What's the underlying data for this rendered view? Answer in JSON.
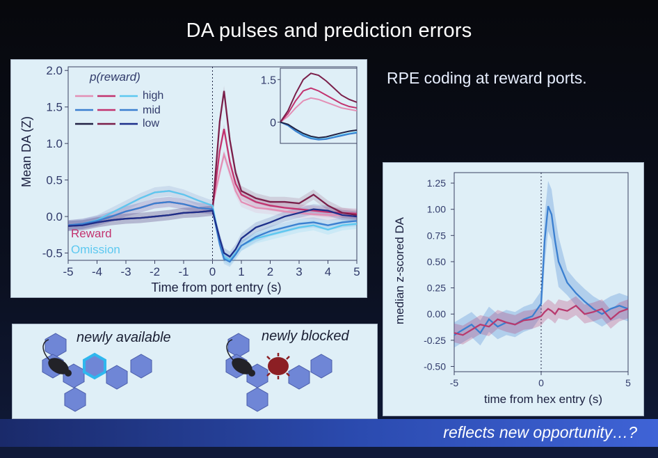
{
  "title": "DA pulses and prediction errors",
  "subtitle": "RPE coding at reward ports.",
  "bottom_text": "reflects new opportunity…?",
  "panel_scenes": {
    "label_left": "newly available",
    "label_right": "newly blocked"
  },
  "colors": {
    "reward_high": "#e38fb5",
    "reward_mid": "#c2336f",
    "reward_low": "#7a1f4a",
    "omission_high": "#5cc8f0",
    "omission_mid": "#3a7fd0",
    "omission_low": "#1d2f8a",
    "low_black": "#222244",
    "hex": "#6f86d6",
    "hex_highlight": "#2fb7ee",
    "blocked": "#8c1f24"
  },
  "chart_data": [
    {
      "type": "line",
      "xlabel": "Time from port entry (s)",
      "ylabel": "Mean DA (Z)",
      "xlim": [
        -5,
        5
      ],
      "ylim": [
        -0.6,
        2.05
      ],
      "xticks": [
        "-5",
        "-4",
        "-3",
        "-2",
        "-1",
        "0",
        "1",
        "2",
        "3",
        "4",
        "5"
      ],
      "yticks": [
        "2.0",
        "1.5",
        "1.0",
        "0.5",
        "0.0",
        "-0.5"
      ],
      "legend_title": "p(reward)",
      "legend_labels": [
        "high",
        "mid",
        "low"
      ],
      "reward_label": "Reward",
      "omission_label": "Omission",
      "x": [
        -5,
        -4.5,
        -4,
        -3.5,
        -3,
        -2.5,
        -2,
        -1.5,
        -1,
        -0.5,
        0,
        0.25,
        0.4,
        0.6,
        0.8,
        1,
        1.5,
        2,
        2.5,
        3,
        3.5,
        4,
        4.5,
        5
      ],
      "series": [
        {
          "name": "reward-high",
          "group": "reward",
          "level": "high",
          "values": [
            -0.12,
            -0.1,
            -0.05,
            0.05,
            0.15,
            0.25,
            0.33,
            0.35,
            0.3,
            0.22,
            0.15,
            0.6,
            0.85,
            0.6,
            0.35,
            0.2,
            0.12,
            0.1,
            0.07,
            0.05,
            0.03,
            0.02,
            0.02,
            0.01
          ]
        },
        {
          "name": "reward-mid",
          "group": "reward",
          "level": "mid",
          "values": [
            -0.12,
            -0.1,
            -0.06,
            0.0,
            0.07,
            0.12,
            0.18,
            0.2,
            0.17,
            0.12,
            0.1,
            0.9,
            1.2,
            0.75,
            0.45,
            0.3,
            0.2,
            0.15,
            0.12,
            0.1,
            0.08,
            0.06,
            0.05,
            0.04
          ]
        },
        {
          "name": "reward-low",
          "group": "reward",
          "level": "low",
          "values": [
            -0.13,
            -0.12,
            -0.08,
            -0.05,
            -0.03,
            -0.02,
            0.0,
            0.02,
            0.05,
            0.06,
            0.08,
            1.3,
            1.72,
            1.05,
            0.6,
            0.35,
            0.25,
            0.2,
            0.2,
            0.18,
            0.3,
            0.15,
            0.05,
            0.02
          ]
        },
        {
          "name": "omission-high",
          "group": "omission",
          "level": "high",
          "values": [
            -0.12,
            -0.1,
            -0.05,
            0.05,
            0.15,
            0.25,
            0.33,
            0.35,
            0.3,
            0.22,
            0.15,
            -0.35,
            -0.55,
            -0.6,
            -0.5,
            -0.4,
            -0.3,
            -0.25,
            -0.2,
            -0.15,
            -0.12,
            -0.18,
            -0.12,
            -0.1
          ]
        },
        {
          "name": "omission-mid",
          "group": "omission",
          "level": "mid",
          "values": [
            -0.12,
            -0.1,
            -0.06,
            0.0,
            0.07,
            0.12,
            0.18,
            0.2,
            0.17,
            0.12,
            0.1,
            -0.38,
            -0.58,
            -0.62,
            -0.52,
            -0.4,
            -0.28,
            -0.2,
            -0.15,
            -0.1,
            -0.08,
            -0.12,
            -0.08,
            -0.06
          ]
        },
        {
          "name": "omission-low",
          "group": "omission",
          "level": "low",
          "values": [
            -0.13,
            -0.12,
            -0.08,
            -0.05,
            -0.03,
            -0.02,
            0.0,
            0.02,
            0.05,
            0.06,
            0.08,
            -0.3,
            -0.5,
            -0.55,
            -0.45,
            -0.3,
            -0.15,
            -0.08,
            0.0,
            0.05,
            0.1,
            0.08,
            0.02,
            0.0
          ]
        }
      ],
      "inset": {
        "yticks": [
          "1.5",
          "0"
        ],
        "x": [
          0,
          0.1,
          0.2,
          0.3,
          0.4,
          0.5,
          0.6,
          0.7,
          0.8,
          0.9,
          1.0
        ],
        "series": [
          {
            "name": "inset-reward-high",
            "values": [
              0,
              0.2,
              0.5,
              0.75,
              0.85,
              0.8,
              0.7,
              0.6,
              0.5,
              0.45,
              0.4
            ]
          },
          {
            "name": "inset-reward-mid",
            "values": [
              0,
              0.3,
              0.75,
              1.1,
              1.2,
              1.1,
              0.95,
              0.8,
              0.65,
              0.55,
              0.5
            ]
          },
          {
            "name": "inset-reward-low",
            "values": [
              0,
              0.4,
              1.0,
              1.5,
              1.72,
              1.65,
              1.45,
              1.2,
              0.95,
              0.8,
              0.7
            ]
          },
          {
            "name": "inset-omission-high",
            "values": [
              0,
              -0.1,
              -0.3,
              -0.45,
              -0.55,
              -0.6,
              -0.58,
              -0.52,
              -0.45,
              -0.4,
              -0.35
            ]
          },
          {
            "name": "inset-omission-mid",
            "values": [
              0,
              -0.12,
              -0.32,
              -0.48,
              -0.58,
              -0.62,
              -0.6,
              -0.54,
              -0.48,
              -0.42,
              -0.38
            ]
          },
          {
            "name": "inset-omission-low",
            "values": [
              0,
              -0.08,
              -0.25,
              -0.4,
              -0.5,
              -0.55,
              -0.52,
              -0.45,
              -0.38,
              -0.32,
              -0.28
            ]
          }
        ]
      }
    },
    {
      "type": "line",
      "xlabel": "time from hex entry (s)",
      "ylabel": "median z-scored DA",
      "xlim": [
        -5,
        5
      ],
      "ylim": [
        -0.55,
        1.35
      ],
      "xticks": [
        "-5",
        "0",
        "5"
      ],
      "yticks": [
        "1.25",
        "1.00",
        "0.75",
        "0.50",
        "0.25",
        "0.00",
        "-0.25",
        "-0.50"
      ],
      "x": [
        -5,
        -4.5,
        -4,
        -3.5,
        -3,
        -2.5,
        -2,
        -1.5,
        -1,
        -0.5,
        0,
        0.2,
        0.4,
        0.6,
        0.8,
        1,
        1.5,
        2,
        2.5,
        3,
        3.5,
        4,
        4.5,
        5
      ],
      "series": [
        {
          "name": "newly-available",
          "color": "#3a7fd0",
          "values": [
            -0.2,
            -0.15,
            -0.1,
            -0.18,
            -0.05,
            -0.12,
            -0.08,
            -0.1,
            -0.05,
            -0.02,
            0.1,
            0.7,
            1.03,
            0.95,
            0.7,
            0.5,
            0.3,
            0.2,
            0.12,
            0.05,
            0.0,
            0.05,
            0.08,
            0.05
          ]
        },
        {
          "name": "newly-blocked",
          "color": "#b83a6e",
          "values": [
            -0.18,
            -0.2,
            -0.15,
            -0.1,
            -0.12,
            -0.05,
            -0.08,
            -0.1,
            -0.06,
            -0.05,
            -0.02,
            0.02,
            0.05,
            0.03,
            0.0,
            0.05,
            0.03,
            0.08,
            0.0,
            0.02,
            0.05,
            -0.05,
            0.02,
            0.05
          ]
        }
      ]
    }
  ]
}
